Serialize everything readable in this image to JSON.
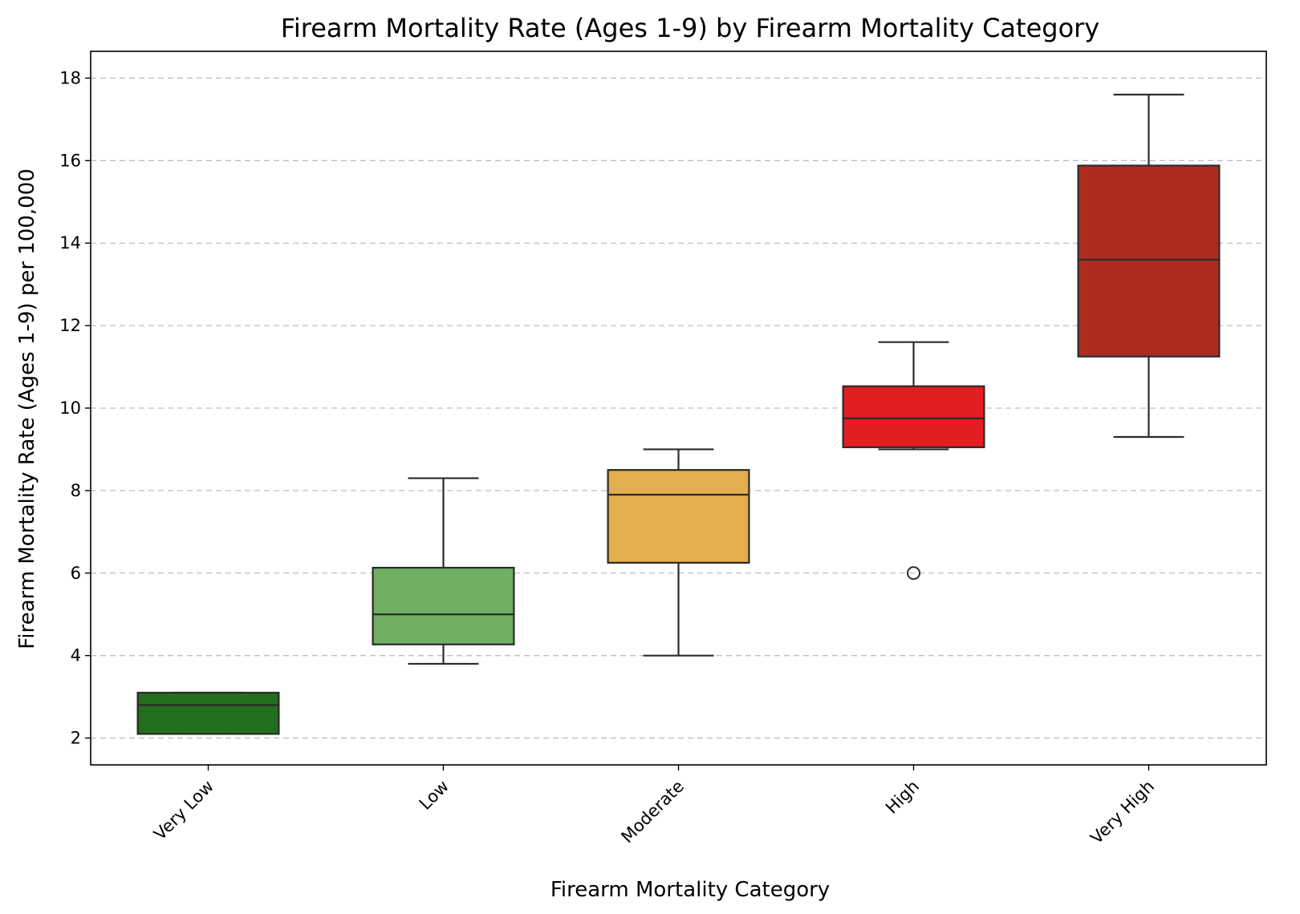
{
  "chart_data": {
    "type": "box",
    "title": "Firearm Mortality Rate (Ages 1-9) by Firearm Mortality Category",
    "xlabel": "Firearm Mortality Category",
    "ylabel": "Firearm Mortality Rate (Ages 1-9) per 100,000",
    "ylim": [
      1.35,
      18.65
    ],
    "yticks": [
      2,
      4,
      6,
      8,
      10,
      12,
      14,
      16,
      18
    ],
    "grid": "y-dashed",
    "categories": [
      "Very Low",
      "Low",
      "Moderate",
      "High",
      "Very High"
    ],
    "boxes": [
      {
        "category": "Very Low",
        "color": "#236e1c",
        "whisker_low": 2.1,
        "q1": 2.1,
        "median": 2.8,
        "q3": 3.1,
        "whisker_high": 3.1,
        "outliers": []
      },
      {
        "category": "Low",
        "color": "#71af63",
        "whisker_low": 3.8,
        "q1": 4.27,
        "median": 5.0,
        "q3": 6.13,
        "whisker_high": 8.3,
        "outliers": []
      },
      {
        "category": "Moderate",
        "color": "#e3ae4b",
        "whisker_low": 4.0,
        "q1": 6.25,
        "median": 7.9,
        "q3": 8.5,
        "whisker_high": 9.0,
        "outliers": []
      },
      {
        "category": "High",
        "color": "#e21e22",
        "whisker_low": 9.0,
        "q1": 9.05,
        "median": 9.75,
        "q3": 10.53,
        "whisker_high": 11.6,
        "outliers": [
          6.0
        ]
      },
      {
        "category": "Very High",
        "color": "#ad2c20",
        "whisker_low": 9.3,
        "q1": 11.25,
        "median": 13.6,
        "q3": 15.88,
        "whisker_high": 17.6,
        "outliers": []
      }
    ]
  }
}
